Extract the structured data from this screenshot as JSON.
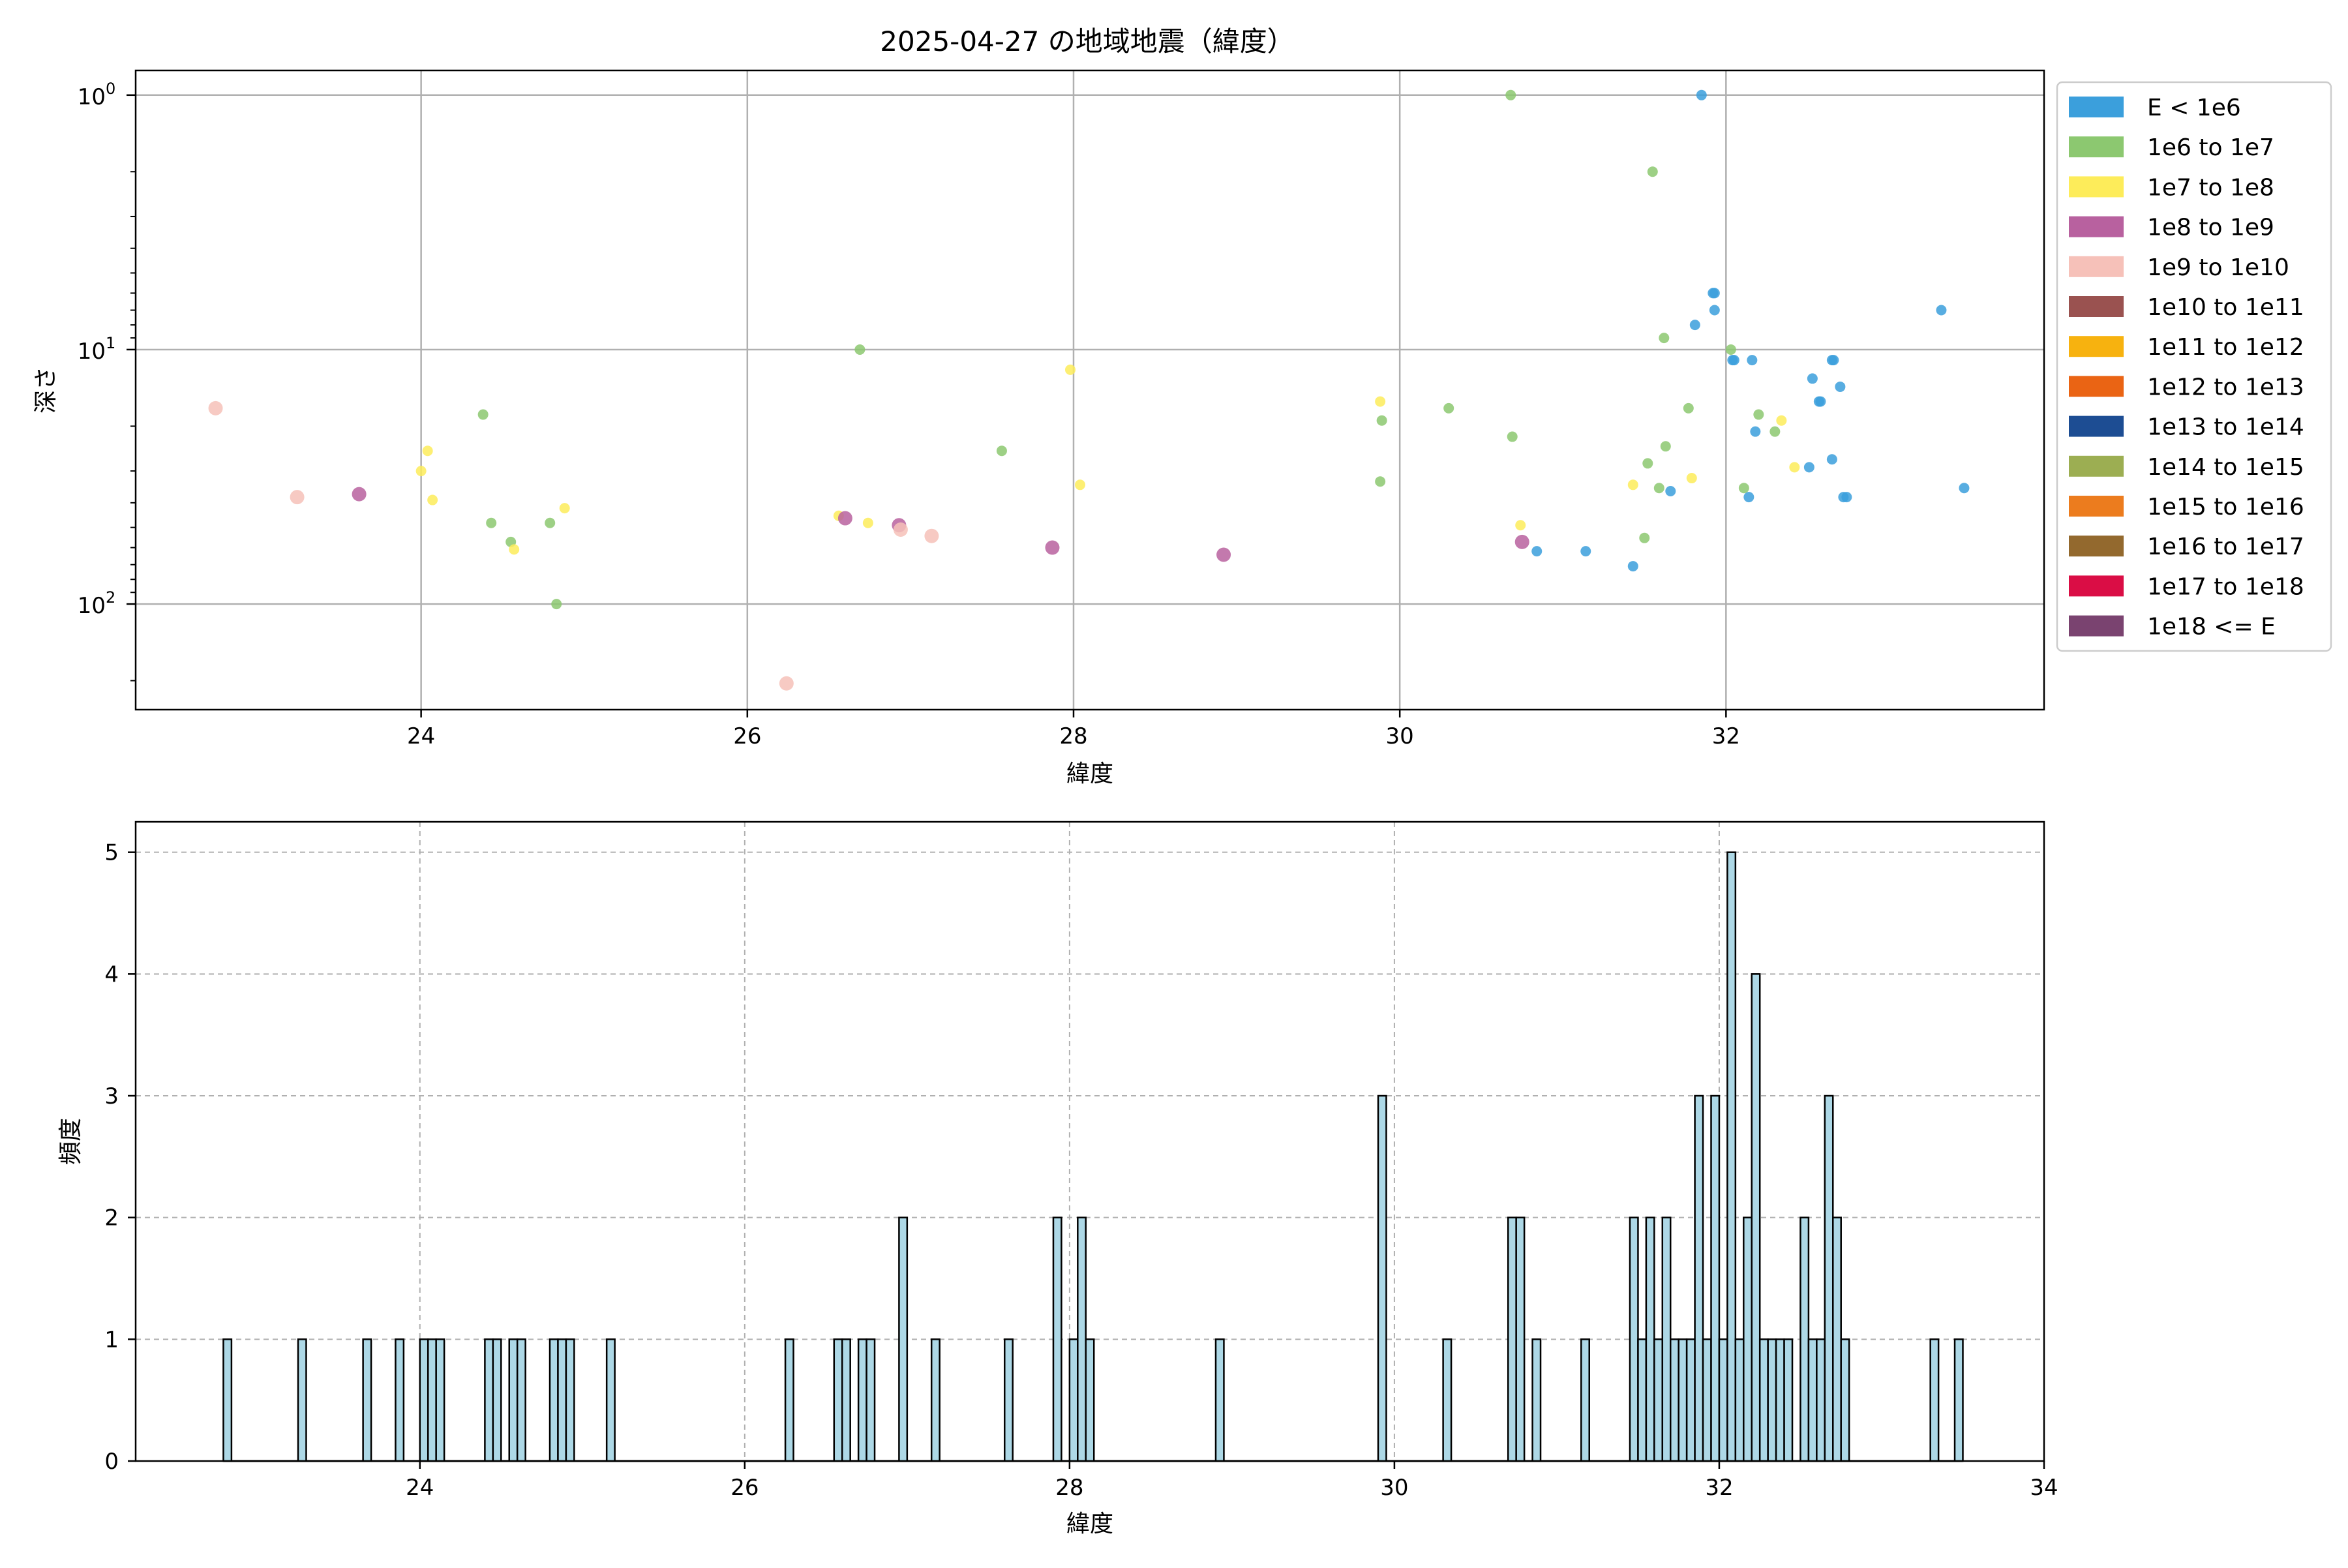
{
  "figure": {
    "title": "2025-04-27 の地域地震（緯度）"
  },
  "chart_data": [
    {
      "type": "scatter",
      "xlabel": "緯度",
      "ylabel": "深さ",
      "xlim": [
        22.25,
        33.95
      ],
      "ylim": [
        260,
        0.8
      ],
      "y_scale": "log",
      "y_inverted": true,
      "grid": true,
      "x_ticks": [
        24,
        26,
        28,
        30,
        32
      ],
      "y_ticks": [
        {
          "value": 1,
          "base": "10",
          "exp": "0"
        },
        {
          "value": 10,
          "base": "10",
          "exp": "1"
        },
        {
          "value": 100,
          "base": "10",
          "exp": "2"
        }
      ],
      "legend_position": "outside-right",
      "legend": [
        {
          "label": "E < 1e6",
          "color": "#3b9fdc"
        },
        {
          "label": "1e6 to 1e7",
          "color": "#8cc870"
        },
        {
          "label": "1e7 to 1e8",
          "color": "#fdec5a"
        },
        {
          "label": "1e8 to 1e9",
          "color": "#b8619f"
        },
        {
          "label": "1e9 to 1e10",
          "color": "#f6c1b9"
        },
        {
          "label": "1e10 to 1e11",
          "color": "#9a5250"
        },
        {
          "label": "1e11 to 1e12",
          "color": "#f7b20f"
        },
        {
          "label": "1e12 to 1e13",
          "color": "#ea6414"
        },
        {
          "label": "1e13 to 1e14",
          "color": "#1d4d93"
        },
        {
          "label": "1e14 to 1e15",
          "color": "#9cae52"
        },
        {
          "label": "1e15 to 1e16",
          "color": "#ec7c1e"
        },
        {
          "label": "1e16 to 1e17",
          "color": "#93692e"
        },
        {
          "label": "1e17 to 1e18",
          "color": "#da0d45"
        },
        {
          "label": "1e18 <= E",
          "color": "#7a4370"
        }
      ],
      "series": [
        {
          "name": "E < 1e6",
          "points": [
            [
              31.85,
              1.0
            ],
            [
              31.92,
              6.0
            ],
            [
              31.93,
              6.0
            ],
            [
              31.93,
              7.0
            ],
            [
              31.81,
              8.0
            ],
            [
              32.04,
              11.0
            ],
            [
              32.05,
              11.0
            ],
            [
              32.16,
              11.0
            ],
            [
              33.32,
              7.0
            ],
            [
              32.65,
              11.0
            ],
            [
              32.66,
              11.0
            ],
            [
              32.53,
              13.0
            ],
            [
              32.7,
              14.0
            ],
            [
              32.58,
              16.0
            ],
            [
              32.57,
              16.0
            ],
            [
              32.18,
              21.0
            ],
            [
              32.65,
              27.0
            ],
            [
              32.51,
              29.0
            ],
            [
              31.66,
              36.0
            ],
            [
              32.14,
              38.0
            ],
            [
              32.72,
              38.0
            ],
            [
              32.74,
              38.0
            ],
            [
              33.46,
              35.0
            ],
            [
              30.84,
              62.0
            ],
            [
              31.14,
              62.0
            ],
            [
              31.43,
              71.0
            ]
          ]
        },
        {
          "name": "1e6 to 1e7",
          "points": [
            [
              30.68,
              1.0
            ],
            [
              31.55,
              2.0
            ],
            [
              31.62,
              9.0
            ],
            [
              32.03,
              10.0
            ],
            [
              26.69,
              10.0
            ],
            [
              32.2,
              18.0
            ],
            [
              31.77,
              17.0
            ],
            [
              30.3,
              17.0
            ],
            [
              24.38,
              18.0
            ],
            [
              29.89,
              19.0
            ],
            [
              32.3,
              21.0
            ],
            [
              30.69,
              22.0
            ],
            [
              31.63,
              24.0
            ],
            [
              27.56,
              25.0
            ],
            [
              31.52,
              28.0
            ],
            [
              29.88,
              33.0
            ],
            [
              31.59,
              35.0
            ],
            [
              32.11,
              35.0
            ],
            [
              24.43,
              48.0
            ],
            [
              24.79,
              48.0
            ],
            [
              24.55,
              57.0
            ],
            [
              31.5,
              55.0
            ],
            [
              24.83,
              100.0
            ]
          ]
        },
        {
          "name": "1e7 to 1e8",
          "points": [
            [
              27.98,
              12.0
            ],
            [
              29.88,
              16.0
            ],
            [
              32.34,
              19.0
            ],
            [
              24.04,
              25.0
            ],
            [
              24.0,
              30.0
            ],
            [
              24.07,
              39.0
            ],
            [
              24.88,
              42.0
            ],
            [
              28.04,
              34.0
            ],
            [
              31.43,
              34.0
            ],
            [
              32.42,
              29.0
            ],
            [
              31.79,
              32.0
            ],
            [
              26.56,
              45.0
            ],
            [
              26.74,
              48.0
            ],
            [
              30.74,
              49.0
            ],
            [
              24.57,
              61.0
            ]
          ]
        },
        {
          "name": "1e8 to 1e9",
          "points": [
            [
              23.62,
              37.0
            ],
            [
              26.6,
              46.0
            ],
            [
              26.93,
              49.0
            ],
            [
              27.87,
              60.0
            ],
            [
              28.92,
              64.0
            ],
            [
              30.75,
              57.0
            ]
          ]
        },
        {
          "name": "1e9 to 1e10",
          "points": [
            [
              22.74,
              17.0
            ],
            [
              23.24,
              38.0
            ],
            [
              26.94,
              51.0
            ],
            [
              27.13,
              54.0
            ],
            [
              26.24,
              205.0
            ]
          ]
        }
      ]
    },
    {
      "type": "bar",
      "xlabel": "緯度",
      "ylabel": "頻度",
      "xlim": [
        22.25,
        34.0
      ],
      "ylim": [
        0,
        5.25
      ],
      "grid": true,
      "x_ticks": [
        24,
        26,
        28,
        30,
        32,
        34
      ],
      "y_ticks": [
        0,
        1,
        2,
        3,
        4,
        5
      ],
      "bar_color": "#add8e6",
      "bar_edge_color": "#000000",
      "bin_width": 0.05,
      "bins": [
        {
          "x": 22.79,
          "count": 1
        },
        {
          "x": 23.25,
          "count": 1
        },
        {
          "x": 23.65,
          "count": 1
        },
        {
          "x": 23.85,
          "count": 1
        },
        {
          "x": 24.0,
          "count": 1
        },
        {
          "x": 24.05,
          "count": 1
        },
        {
          "x": 24.1,
          "count": 1
        },
        {
          "x": 24.4,
          "count": 1
        },
        {
          "x": 24.45,
          "count": 1
        },
        {
          "x": 24.55,
          "count": 1
        },
        {
          "x": 24.6,
          "count": 1
        },
        {
          "x": 24.8,
          "count": 1
        },
        {
          "x": 24.85,
          "count": 1
        },
        {
          "x": 24.9,
          "count": 1
        },
        {
          "x": 25.15,
          "count": 1
        },
        {
          "x": 26.25,
          "count": 1
        },
        {
          "x": 26.55,
          "count": 1
        },
        {
          "x": 26.6,
          "count": 1
        },
        {
          "x": 26.7,
          "count": 1
        },
        {
          "x": 26.75,
          "count": 1
        },
        {
          "x": 26.95,
          "count": 2
        },
        {
          "x": 27.15,
          "count": 1
        },
        {
          "x": 27.6,
          "count": 1
        },
        {
          "x": 27.9,
          "count": 2
        },
        {
          "x": 28.0,
          "count": 1
        },
        {
          "x": 28.05,
          "count": 2
        },
        {
          "x": 28.1,
          "count": 1
        },
        {
          "x": 28.9,
          "count": 1
        },
        {
          "x": 29.9,
          "count": 3
        },
        {
          "x": 30.3,
          "count": 1
        },
        {
          "x": 30.7,
          "count": 2
        },
        {
          "x": 30.75,
          "count": 2
        },
        {
          "x": 30.85,
          "count": 1
        },
        {
          "x": 31.15,
          "count": 1
        },
        {
          "x": 31.45,
          "count": 2
        },
        {
          "x": 31.5,
          "count": 1
        },
        {
          "x": 31.55,
          "count": 2
        },
        {
          "x": 31.6,
          "count": 1
        },
        {
          "x": 31.65,
          "count": 2
        },
        {
          "x": 31.7,
          "count": 1
        },
        {
          "x": 31.75,
          "count": 1
        },
        {
          "x": 31.8,
          "count": 1
        },
        {
          "x": 31.85,
          "count": 3
        },
        {
          "x": 31.9,
          "count": 1
        },
        {
          "x": 31.95,
          "count": 3
        },
        {
          "x": 32.0,
          "count": 1
        },
        {
          "x": 32.05,
          "count": 5
        },
        {
          "x": 32.1,
          "count": 1
        },
        {
          "x": 32.15,
          "count": 2
        },
        {
          "x": 32.2,
          "count": 4
        },
        {
          "x": 32.25,
          "count": 1
        },
        {
          "x": 32.3,
          "count": 1
        },
        {
          "x": 32.35,
          "count": 1
        },
        {
          "x": 32.4,
          "count": 1
        },
        {
          "x": 32.5,
          "count": 2
        },
        {
          "x": 32.55,
          "count": 1
        },
        {
          "x": 32.6,
          "count": 1
        },
        {
          "x": 32.65,
          "count": 3
        },
        {
          "x": 32.7,
          "count": 2
        },
        {
          "x": 32.75,
          "count": 1
        },
        {
          "x": 33.3,
          "count": 1
        },
        {
          "x": 33.45,
          "count": 1
        }
      ]
    }
  ]
}
